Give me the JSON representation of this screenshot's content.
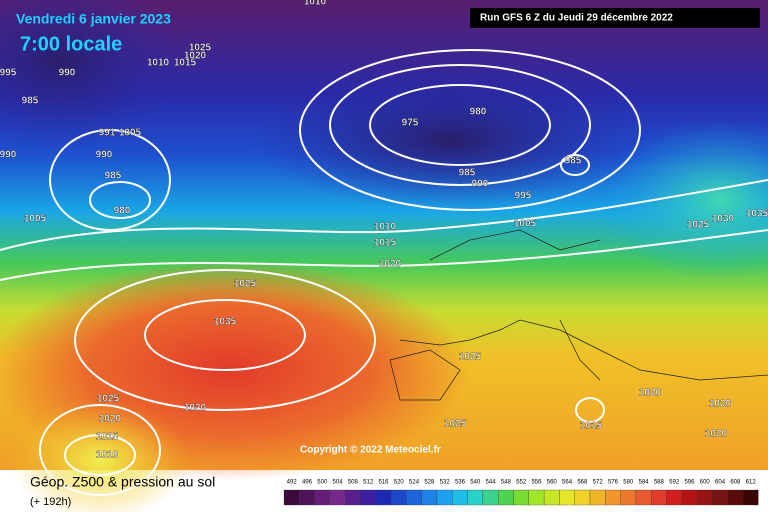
{
  "header": {
    "date": "Vendredi 6 janvier 2023",
    "time": "7:00 locale",
    "run": "Run GFS 6 Z du Jeudi 29 décembre 2022"
  },
  "copyright": "Copyright © 2022 Meteociel.fr",
  "footer": {
    "title": "Géop. Z500 & pression au sol",
    "lead": "(+ 192h)"
  },
  "isobar_labels": [
    1010,
    1025,
    1020,
    1010,
    1015,
    995,
    990,
    985,
    991,
    1005,
    990,
    985,
    990,
    980,
    1005,
    975,
    980,
    985,
    985,
    990,
    995,
    1005,
    1010,
    1015,
    1020,
    1025,
    1030,
    1025,
    1035,
    1035,
    1025,
    1030,
    1025,
    1020,
    1015,
    1010,
    1025,
    1015,
    1020,
    1020,
    1020
  ],
  "colorbar": {
    "labels": [
      492,
      496,
      500,
      504,
      508,
      512,
      516,
      520,
      524,
      528,
      532,
      536,
      540,
      544,
      548,
      552,
      556,
      560,
      564,
      568,
      572,
      576,
      580,
      584,
      588,
      592,
      596,
      600,
      604,
      608,
      612
    ],
    "colors": [
      "#3c0a3c",
      "#50145a",
      "#641e78",
      "#78288c",
      "#5a1e8c",
      "#3c1ea0",
      "#1e28b4",
      "#1e46c8",
      "#1e64dc",
      "#1e82e6",
      "#1ea0f0",
      "#1ebee6",
      "#28d2c8",
      "#3cd28c",
      "#50d250",
      "#78dc32",
      "#a0e628",
      "#c8e628",
      "#e6e628",
      "#f0d228",
      "#f0b428",
      "#f0962d",
      "#eb782d",
      "#e65a2d",
      "#e13c2d",
      "#d21e1e",
      "#b41414",
      "#961414",
      "#781414",
      "#5a0a0a",
      "#3c0505"
    ]
  }
}
